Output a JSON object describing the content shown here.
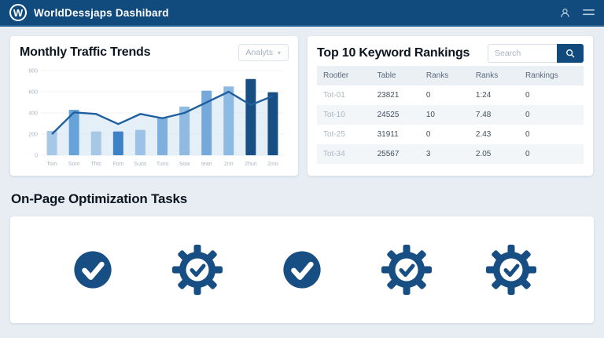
{
  "header": {
    "logo_letter": "W",
    "title": "WorldDessjaps Dashibard"
  },
  "traffic_panel": {
    "title": "Monthly Traffic Trends",
    "dropdown_label": "Analyts"
  },
  "chart_data": {
    "type": "bar",
    "title": "Monthly Traffic Trends",
    "categories": [
      "Tom",
      "Som",
      "Thtc",
      "Fom",
      "Suos",
      "Tuns",
      "Sow",
      "Iean",
      "2nn",
      "2hun",
      "2mo"
    ],
    "series": [
      {
        "name": "traffic-bars",
        "type": "bar",
        "values": [
          230,
          430,
          225,
          225,
          240,
          360,
          460,
          610,
          650,
          720,
          595
        ],
        "colors": [
          "#a7c7e7",
          "#66a3d9",
          "#a7c7e7",
          "#3c82c4",
          "#9ec2e5",
          "#7fb0dd",
          "#8fbbe2",
          "#74a9da",
          "#8cbae2",
          "#174e83",
          "#174e83"
        ]
      },
      {
        "name": "trend-line",
        "type": "line",
        "values": [
          200,
          405,
          390,
          295,
          390,
          350,
          400,
          500,
          600,
          475,
          560
        ],
        "color": "#1f5f9e",
        "area_fill": "#d4e4f2"
      }
    ],
    "xlabel": "",
    "ylabel": "",
    "ylim": [
      0,
      800
    ],
    "yticks": [
      0,
      200,
      400,
      600,
      800
    ],
    "grid": true,
    "legend": false
  },
  "keywords_panel": {
    "title": "Top 10 Keyword Rankings",
    "search_placeholder": "Search",
    "table": {
      "headers": [
        "Rootler",
        "Table",
        "Ranks",
        "Ranks",
        "Rankings"
      ],
      "rows": [
        [
          "Tot-01",
          "23821",
          "0",
          "1:24",
          "0"
        ],
        [
          "Tot-10",
          "24525",
          "10",
          "7.48",
          "0"
        ],
        [
          "Tot-25",
          "31911",
          "0",
          "2.43",
          "0"
        ],
        [
          "Tot-34",
          "25567",
          "3",
          "2.05",
          "0"
        ]
      ]
    }
  },
  "tasks_panel": {
    "title": "On-Page Optimization Tasks",
    "icons": [
      "circle-check",
      "gear-check",
      "circle-check",
      "gear-check",
      "gear-check"
    ]
  },
  "colors": {
    "header_bg": "#114a7d",
    "accent_navy": "#174e83",
    "page_bg": "#e7edf3",
    "line": "#1f5f9e",
    "bar_light": "#a7c7e7",
    "table_header_bg": "#ebf0f5"
  }
}
